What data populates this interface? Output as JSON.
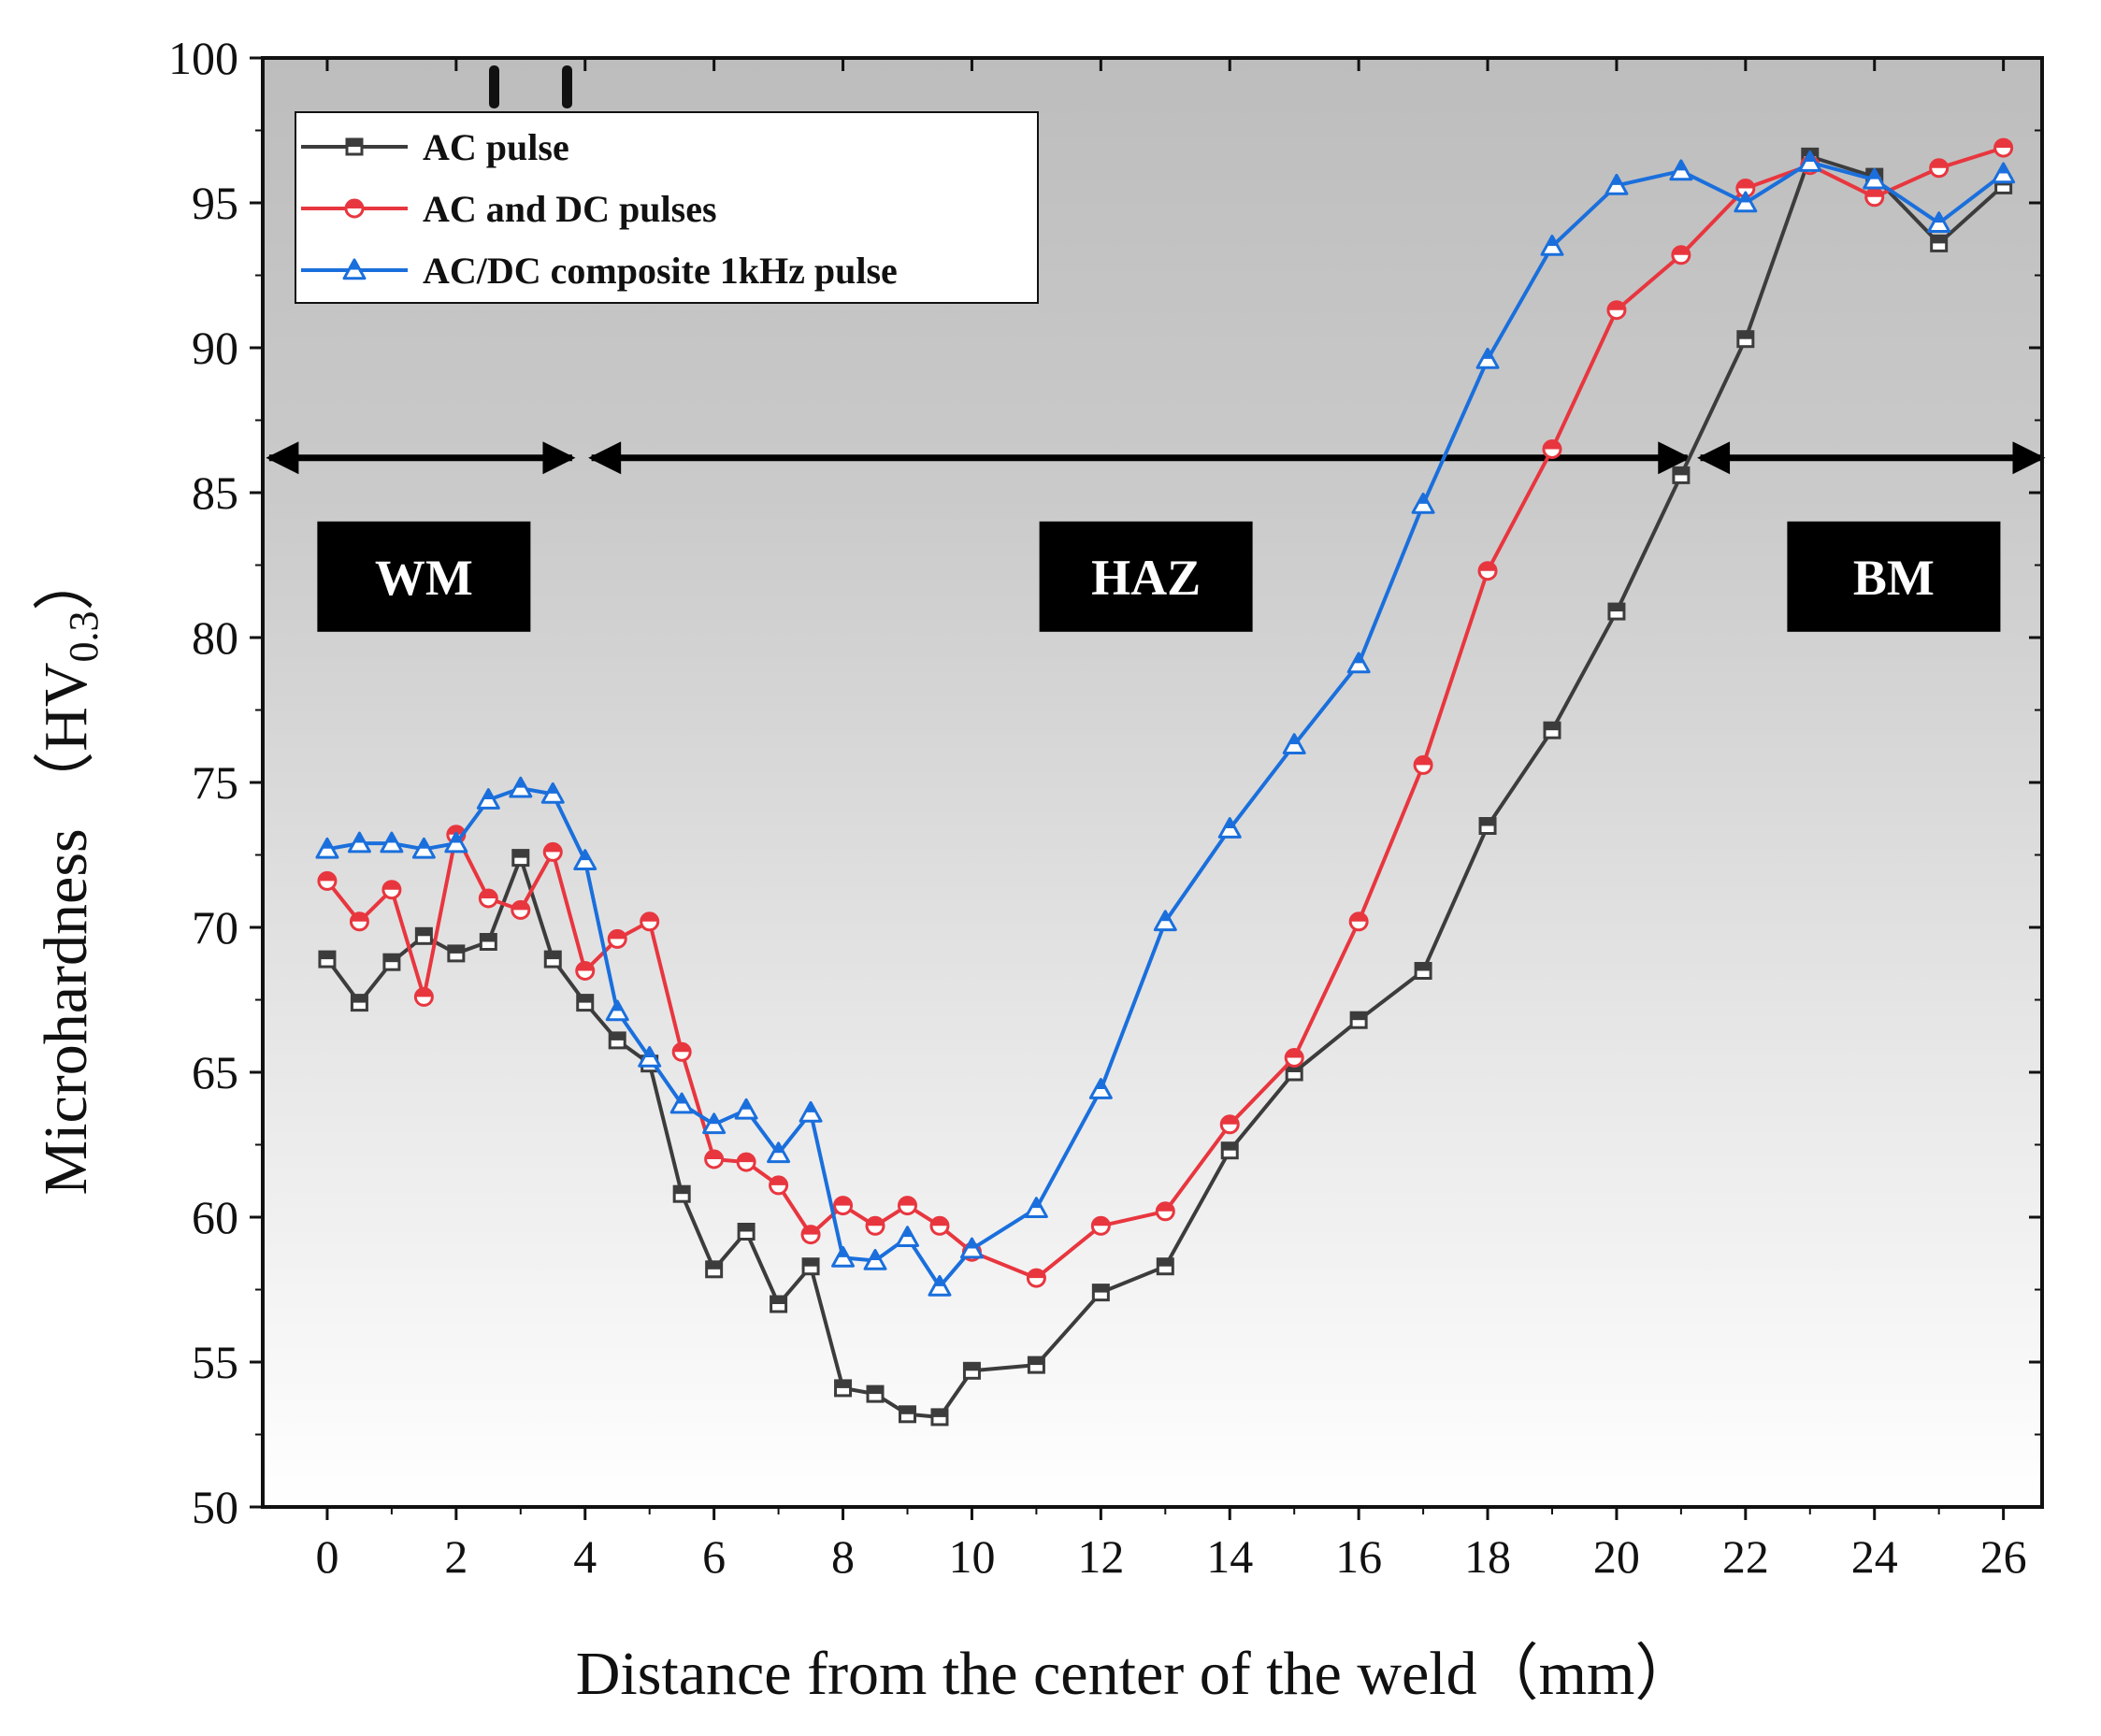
{
  "chart_data": {
    "type": "line",
    "xlabel": "Distance from the center of the weld（mm）",
    "ylabel": {
      "main": "Microhardness （HV",
      "sub": "0.3",
      "close": "）"
    },
    "xlim": [
      -1,
      26.6
    ],
    "ylim": [
      50,
      100
    ],
    "x_ticks": [
      0,
      2,
      4,
      6,
      8,
      10,
      12,
      14,
      16,
      18,
      20,
      22,
      24,
      26
    ],
    "y_ticks": [
      50,
      55,
      60,
      65,
      70,
      75,
      80,
      85,
      90,
      95,
      100
    ],
    "legend_position": "top-left",
    "series": [
      {
        "name": "AC pulse",
        "color": "#3c3c3c",
        "marker": "square",
        "x": [
          0,
          0.5,
          1,
          1.5,
          2,
          2.5,
          3,
          3.5,
          4,
          4.5,
          5,
          5.5,
          6,
          6.5,
          7,
          7.5,
          8,
          8.5,
          9,
          9.5,
          10,
          11,
          12,
          13,
          14,
          15,
          16,
          17,
          18,
          19,
          20,
          21,
          22,
          23,
          24,
          25,
          26
        ],
        "values": [
          68.9,
          67.4,
          68.8,
          69.7,
          69.1,
          69.5,
          72.4,
          68.9,
          67.4,
          66.1,
          65.3,
          60.8,
          58.2,
          59.5,
          57.0,
          58.3,
          54.1,
          53.9,
          53.2,
          53.1,
          54.7,
          54.9,
          57.4,
          58.3,
          62.3,
          65.0,
          66.8,
          68.5,
          73.5,
          76.8,
          80.9,
          85.6,
          90.3,
          96.6,
          95.9,
          93.6,
          95.6
        ]
      },
      {
        "name": "AC and DC pulses",
        "color": "#e8363f",
        "marker": "circle",
        "x": [
          0,
          0.5,
          1,
          1.5,
          2,
          2.5,
          3,
          3.5,
          4,
          4.5,
          5,
          5.5,
          6,
          6.5,
          7,
          7.5,
          8,
          8.5,
          9,
          9.5,
          10,
          11,
          12,
          13,
          14,
          15,
          16,
          17,
          18,
          19,
          20,
          21,
          22,
          23,
          24,
          25,
          26
        ],
        "values": [
          71.6,
          70.2,
          71.3,
          67.6,
          73.2,
          71.0,
          70.6,
          72.6,
          68.5,
          69.6,
          70.2,
          65.7,
          62.0,
          61.9,
          61.1,
          59.4,
          60.4,
          59.7,
          60.4,
          59.7,
          58.8,
          57.9,
          59.7,
          60.2,
          63.2,
          65.5,
          70.2,
          75.6,
          82.3,
          86.5,
          91.3,
          93.2,
          95.5,
          96.3,
          95.2,
          96.2,
          96.9
        ]
      },
      {
        "name": "AC/DC composite 1kHz pulse",
        "color": "#1a6fdc",
        "marker": "triangle",
        "x": [
          0,
          0.5,
          1,
          1.5,
          2,
          2.5,
          3,
          3.5,
          4,
          4.5,
          5,
          5.5,
          6,
          6.5,
          7,
          7.5,
          8,
          8.5,
          9,
          9.5,
          10,
          11,
          12,
          13,
          14,
          15,
          16,
          17,
          18,
          19,
          20,
          21,
          22,
          23,
          24,
          25,
          26
        ],
        "values": [
          72.7,
          72.9,
          72.9,
          72.7,
          72.9,
          74.4,
          74.8,
          74.6,
          72.3,
          67.1,
          65.5,
          63.9,
          63.2,
          63.7,
          62.2,
          63.6,
          58.6,
          58.5,
          59.3,
          57.6,
          58.9,
          60.3,
          64.4,
          70.2,
          73.4,
          76.3,
          79.1,
          84.6,
          89.6,
          93.5,
          95.6,
          96.1,
          95.0,
          96.4,
          95.8,
          94.3,
          96.0
        ]
      }
    ],
    "regions": [
      {
        "label": "WM",
        "from": -0.9,
        "to": 3.8,
        "box_center": 1.5
      },
      {
        "label": "HAZ",
        "from": 4.1,
        "to": 21.1,
        "box_center": 12.7
      },
      {
        "label": "BM",
        "from": 21.3,
        "to": 26.6,
        "box_center": 24.3
      }
    ],
    "region_arrow_value": 86.2
  }
}
